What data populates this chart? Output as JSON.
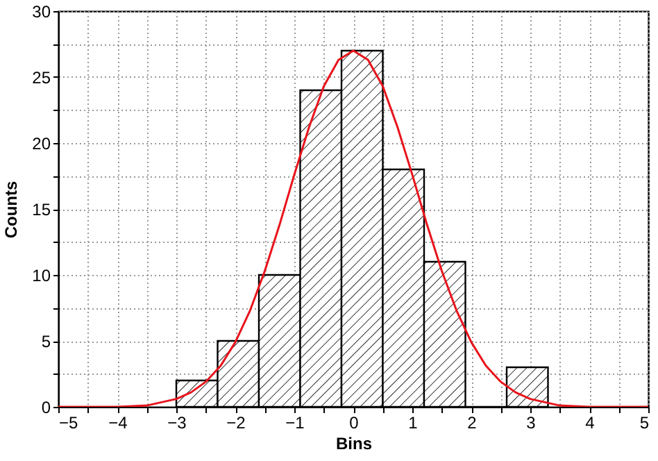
{
  "chart_data": {
    "type": "histogram",
    "xlabel": "Bins",
    "ylabel": "Counts",
    "bins": [
      -3.0,
      -2.3,
      -1.6,
      -0.9,
      -0.2,
      0.5,
      1.2,
      1.9,
      2.6,
      3.3
    ],
    "values": [
      2,
      5,
      10,
      24,
      27,
      18,
      11,
      0,
      3
    ],
    "color": "#000000",
    "series": [
      {
        "type": "line",
        "color": "#e8141c",
        "x": [
          -5,
          -4.5,
          -4,
          -3.5,
          -3,
          -2.75,
          -2.5,
          -2.25,
          -2,
          -1.75,
          -1.5,
          -1.25,
          -1,
          -0.75,
          -0.5,
          -0.25,
          0,
          0.25,
          0.5,
          0.75,
          1,
          1.25,
          1.5,
          1.75,
          2,
          2.25,
          2.5,
          2.75,
          3,
          3.5,
          4,
          4.5,
          5
        ],
        "values": [
          0,
          0,
          0,
          0.1,
          0.6,
          1.1,
          1.9,
          3.1,
          4.9,
          7.3,
          10.3,
          13.8,
          17.6,
          21.2,
          24.3,
          26.3,
          27,
          26.3,
          24.3,
          21.2,
          17.6,
          13.8,
          10.3,
          7.3,
          4.9,
          3.1,
          1.9,
          1.1,
          0.6,
          0.1,
          0,
          0,
          0
        ]
      }
    ],
    "xlim": [
      -5,
      5
    ],
    "xticks": [
      {
        "value": -5,
        "label": "−5"
      },
      {
        "value": -4.5,
        "label": null
      },
      {
        "value": -4,
        "label": "−4"
      },
      {
        "value": -3.5,
        "label": null
      },
      {
        "value": -3,
        "label": "−3"
      },
      {
        "value": -2.5,
        "label": null
      },
      {
        "value": -2,
        "label": "−2"
      },
      {
        "value": -1.5,
        "label": null
      },
      {
        "value": -1,
        "label": "−1"
      },
      {
        "value": -0.5,
        "label": null
      },
      0,
      {
        "value": 0.5,
        "label": null
      },
      1,
      {
        "value": 1.5,
        "label": null
      },
      2,
      {
        "value": 2.5,
        "label": null
      },
      3,
      {
        "value": 3.5,
        "label": null
      },
      4,
      {
        "value": 4.5,
        "label": null
      },
      5
    ],
    "ylim": [
      0,
      30
    ],
    "yticks": [
      0,
      {
        "value": 2.5,
        "label": null
      },
      5,
      {
        "value": 7.5,
        "label": null
      },
      10,
      {
        "value": 12.5,
        "label": null
      },
      15,
      {
        "value": 17.5,
        "label": null
      },
      20,
      {
        "value": 22.5,
        "label": null
      },
      25,
      {
        "value": 27.5,
        "label": null
      },
      30
    ],
    "grid": true
  }
}
